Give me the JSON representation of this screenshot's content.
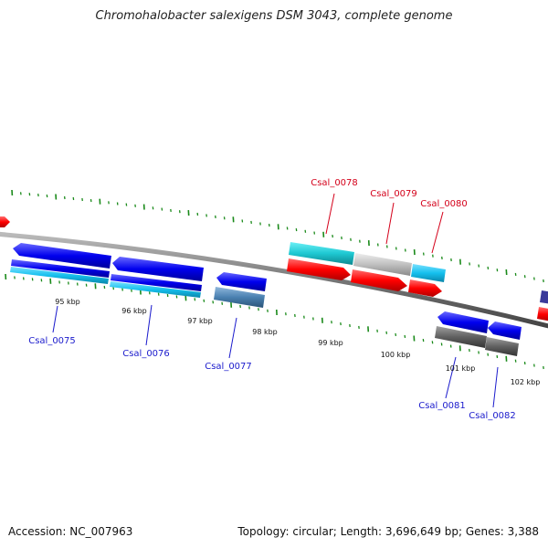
{
  "title": "Chromohalobacter salexigens DSM 3043, complete genome",
  "footer": {
    "accession": "Accession: NC_007963",
    "summary": "Topology: circular; Length: 3,696,649 bp; Genes: 3,388"
  },
  "colors": {
    "backbone": "#808080",
    "ticks": "#1a8a1a",
    "label_forward": "#d4001a",
    "label_reverse": "#1a1acc",
    "gene_forward": "#ff0000",
    "gene_reverse": "#0000e6",
    "cyan": "#1ec8d2",
    "light_blue": "#15c0ee",
    "grey": "#c0c0c0",
    "dark_grey": "#606060",
    "steel_blue": "#4a80b0"
  },
  "kbp_labels": [
    "95 kbp",
    "96 kbp",
    "97 kbp",
    "98 kbp",
    "99 kbp",
    "100 kbp",
    "101 kbp",
    "102 kbp"
  ],
  "gene_labels": {
    "forward": [
      "Csal_0078",
      "Csal_0079",
      "Csal_0080"
    ],
    "reverse": [
      "Csal_0075",
      "Csal_0076",
      "Csal_0077",
      "Csal_0081",
      "Csal_0082"
    ]
  }
}
